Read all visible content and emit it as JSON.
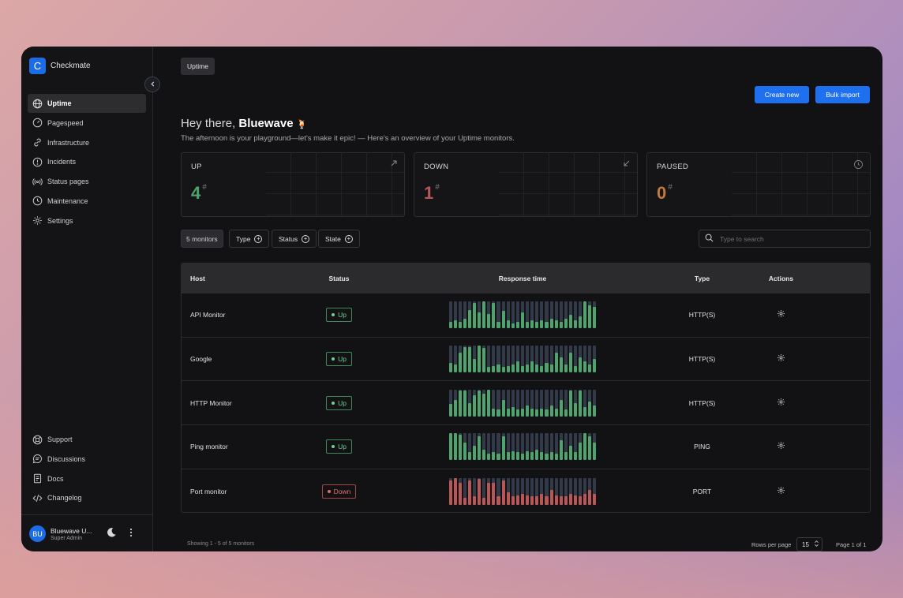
{
  "app": {
    "logo_letter": "C",
    "name": "Checkmate"
  },
  "sidebar": {
    "items": [
      {
        "label": "Uptime",
        "icon": "globe-icon",
        "active": true
      },
      {
        "label": "Pagespeed",
        "icon": "gauge-icon"
      },
      {
        "label": "Infrastructure",
        "icon": "link-icon"
      },
      {
        "label": "Incidents",
        "icon": "alert-circle-icon"
      },
      {
        "label": "Status pages",
        "icon": "broadcast-icon"
      },
      {
        "label": "Maintenance",
        "icon": "clock-icon"
      },
      {
        "label": "Settings",
        "icon": "gear-icon"
      }
    ],
    "bottom_items": [
      {
        "label": "Support",
        "icon": "lifebuoy-icon"
      },
      {
        "label": "Discussions",
        "icon": "chat-icon"
      },
      {
        "label": "Docs",
        "icon": "document-icon"
      },
      {
        "label": "Changelog",
        "icon": "code-icon"
      }
    ],
    "user": {
      "initials": "BU",
      "name": "Bluewave U...",
      "role": "Super Admin"
    }
  },
  "header": {
    "breadcrumb": "Uptime",
    "create_label": "Create new",
    "bulk_label": "Bulk import"
  },
  "greeting": {
    "prefix": "Hey there,",
    "name": "Bluewave",
    "emoji": "🍹",
    "subtitle": "The afternoon is your playground—let's make it epic! — Here's an overview of your Uptime monitors."
  },
  "stats": [
    {
      "label": "UP",
      "value": "4",
      "color": "#4fa36e",
      "icon": "arrow-up-right-icon"
    },
    {
      "label": "DOWN",
      "value": "1",
      "color": "#b85757",
      "icon": "arrow-down-left-icon"
    },
    {
      "label": "PAUSED",
      "value": "0",
      "color": "#c07a3d",
      "icon": "clock-pause-icon"
    }
  ],
  "filters": {
    "count_label": "5 monitors",
    "type_label": "Type",
    "status_label": "Status",
    "state_label": "State",
    "search_placeholder": "Type to search"
  },
  "table": {
    "headers": {
      "host": "Host",
      "status": "Status",
      "response": "Response time",
      "type": "Type",
      "actions": "Actions"
    },
    "rows": [
      {
        "host": "API Monitor",
        "status": "Up",
        "type": "HTTP(S)",
        "state": "up",
        "bars": [
          0.25,
          0.3,
          0.25,
          0.35,
          0.7,
          0.95,
          0.6,
          1,
          0.55,
          0.95,
          0.25,
          0.65,
          0.3,
          0.2,
          0.25,
          0.6,
          0.25,
          0.3,
          0.25,
          0.3,
          0.25,
          0.35,
          0.3,
          0.25,
          0.35,
          0.5,
          0.3,
          0.45,
          1,
          0.85,
          0.8
        ]
      },
      {
        "host": "Google",
        "status": "Up",
        "type": "HTTP(S)",
        "state": "up",
        "bars": [
          0.35,
          0.3,
          0.75,
          0.95,
          0.95,
          0.5,
          1,
          0.9,
          0.2,
          0.25,
          0.3,
          0.2,
          0.25,
          0.3,
          0.4,
          0.25,
          0.3,
          0.4,
          0.3,
          0.25,
          0.35,
          0.3,
          0.75,
          0.55,
          0.3,
          0.75,
          0.25,
          0.55,
          0.4,
          0.3,
          0.5
        ]
      },
      {
        "host": "HTTP Monitor",
        "status": "Up",
        "type": "HTTP(S)",
        "state": "up",
        "bars": [
          0.45,
          0.6,
          0.95,
          0.95,
          0.5,
          0.8,
          0.95,
          0.85,
          1,
          0.3,
          0.25,
          0.6,
          0.3,
          0.35,
          0.25,
          0.3,
          0.4,
          0.3,
          0.25,
          0.3,
          0.25,
          0.4,
          0.3,
          0.6,
          0.25,
          0.95,
          0.5,
          0.95,
          0.35,
          0.55,
          0.4
        ]
      },
      {
        "host": "Ping monitor",
        "status": "Up",
        "type": "PING",
        "state": "up",
        "bars": [
          1,
          1,
          0.95,
          0.65,
          0.3,
          0.55,
          0.9,
          0.4,
          0.25,
          0.3,
          0.25,
          0.9,
          0.3,
          0.35,
          0.3,
          0.25,
          0.35,
          0.3,
          0.4,
          0.3,
          0.25,
          0.3,
          0.25,
          0.75,
          0.3,
          0.55,
          0.3,
          0.65,
          1,
          0.9,
          0.65
        ]
      },
      {
        "host": "Port monitor",
        "status": "Down",
        "type": "PORT",
        "state": "down",
        "bars": [
          0.9,
          1,
          0.8,
          0.25,
          0.9,
          0.3,
          0.95,
          0.25,
          0.8,
          0.8,
          0.3,
          0.9,
          0.45,
          0.3,
          0.35,
          0.4,
          0.35,
          0.3,
          0.3,
          0.4,
          0.3,
          0.55,
          0.35,
          0.3,
          0.3,
          0.4,
          0.35,
          0.3,
          0.4,
          0.55,
          0.4
        ]
      }
    ]
  },
  "pagination": {
    "showing": "Showing 1 - 5 of 5 monitors",
    "rows_label": "Rows per page",
    "rows_value": "15",
    "page_label": "Page 1 of 1"
  },
  "colors": {
    "accent": "#1e70ee",
    "up": "#4fa36e",
    "down": "#b85757"
  }
}
